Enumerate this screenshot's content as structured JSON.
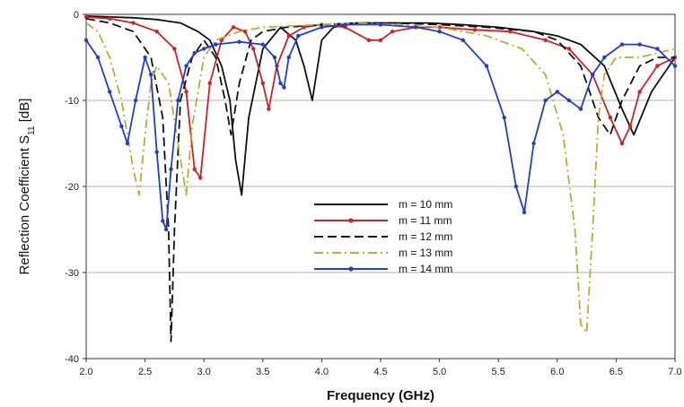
{
  "chart_data": {
    "type": "line",
    "title": "",
    "xlabel": "Frequency (GHz)",
    "ylabel": {
      "main": "Reflection Coefficient S",
      "subscript": "11",
      "unit": " [dB]"
    },
    "xlim": [
      2.0,
      7.0
    ],
    "ylim": [
      -40,
      0
    ],
    "xticks": [
      2.0,
      2.5,
      3.0,
      3.5,
      4.0,
      4.5,
      5.0,
      5.5,
      6.0,
      6.5,
      7.0
    ],
    "yticks": [
      0,
      -10,
      -20,
      -30,
      -40
    ],
    "xtick_labels": [
      "2.0",
      "2.5",
      "3.0",
      "3.5",
      "4.0",
      "4.5",
      "5.0",
      "5.5",
      "6.0",
      "6.5",
      "7.0"
    ],
    "ytick_labels": [
      "0",
      "-10",
      "-20",
      "-30",
      "-40"
    ],
    "grid": "horizontal",
    "legend_position": "center",
    "series": [
      {
        "name": "m = 10 mm",
        "color": "#111111",
        "style": "solid",
        "marker": "none",
        "x": [
          2.0,
          2.2,
          2.4,
          2.6,
          2.8,
          2.95,
          3.05,
          3.15,
          3.22,
          3.27,
          3.32,
          3.38,
          3.5,
          3.65,
          3.78,
          3.85,
          3.92,
          4.0,
          4.1,
          4.3,
          4.6,
          4.9,
          5.2,
          5.5,
          5.8,
          6.0,
          6.2,
          6.4,
          6.55,
          6.65,
          6.8,
          7.0
        ],
        "y": [
          -0.2,
          -0.3,
          -0.4,
          -0.6,
          -1.0,
          -2.0,
          -3.0,
          -6.0,
          -10.0,
          -17.0,
          -21.0,
          -12.0,
          -4.0,
          -1.5,
          -3.0,
          -6.0,
          -10.0,
          -3.0,
          -1.5,
          -1.0,
          -1.0,
          -1.0,
          -1.2,
          -1.5,
          -2.0,
          -2.5,
          -3.5,
          -6.0,
          -11.0,
          -14.0,
          -9.0,
          -5.0
        ]
      },
      {
        "name": "m = 11 mm",
        "color": "#d42020",
        "style": "solid",
        "marker": "circle",
        "x": [
          2.0,
          2.2,
          2.4,
          2.6,
          2.75,
          2.85,
          2.92,
          2.97,
          3.05,
          3.15,
          3.25,
          3.35,
          3.42,
          3.5,
          3.55,
          3.62,
          3.72,
          3.85,
          4.0,
          4.2,
          4.4,
          4.5,
          4.6,
          4.8,
          5.0,
          5.3,
          5.6,
          5.9,
          6.1,
          6.3,
          6.45,
          6.55,
          6.62,
          6.7,
          6.85,
          7.0
        ],
        "y": [
          -0.3,
          -0.5,
          -1.0,
          -2.0,
          -4.0,
          -9.0,
          -18.0,
          -19.0,
          -8.0,
          -3.0,
          -1.5,
          -2.0,
          -4.0,
          -8.0,
          -11.0,
          -6.0,
          -2.5,
          -1.5,
          -1.2,
          -1.5,
          -3.0,
          -3.0,
          -2.0,
          -1.5,
          -1.5,
          -1.8,
          -2.0,
          -3.0,
          -4.0,
          -7.0,
          -12.0,
          -15.0,
          -13.0,
          -9.0,
          -6.0,
          -5.0
        ]
      },
      {
        "name": "m = 12 mm",
        "color": "#111111",
        "style": "dash",
        "marker": "none",
        "x": [
          2.0,
          2.2,
          2.4,
          2.55,
          2.65,
          2.7,
          2.72,
          2.75,
          2.8,
          2.9,
          3.0,
          3.1,
          3.18,
          3.23,
          3.3,
          3.4,
          3.5,
          3.7,
          4.0,
          4.3,
          4.6,
          5.0,
          5.4,
          5.8,
          6.0,
          6.2,
          6.35,
          6.45,
          6.55,
          6.7,
          6.85,
          7.0
        ],
        "y": [
          -0.5,
          -1.0,
          -2.0,
          -5.0,
          -12.0,
          -25.0,
          -38.0,
          -25.0,
          -10.0,
          -5.0,
          -3.0,
          -5.0,
          -10.0,
          -14.0,
          -8.0,
          -3.0,
          -2.0,
          -1.5,
          -1.2,
          -1.0,
          -1.0,
          -1.2,
          -1.5,
          -2.0,
          -3.0,
          -6.0,
          -12.0,
          -14.0,
          -10.0,
          -6.0,
          -5.0,
          -5.0
        ]
      },
      {
        "name": "m = 13 mm",
        "color": "#b8b030",
        "style": "dashdot",
        "marker": "none",
        "x": [
          2.0,
          2.1,
          2.2,
          2.3,
          2.4,
          2.45,
          2.5,
          2.55,
          2.6,
          2.7,
          2.78,
          2.85,
          2.9,
          3.0,
          3.1,
          3.3,
          3.5,
          3.8,
          4.0,
          4.3,
          4.6,
          5.0,
          5.4,
          5.7,
          5.9,
          6.05,
          6.15,
          6.2,
          6.25,
          6.3,
          6.35,
          6.4,
          6.5,
          6.7,
          6.85,
          7.0
        ],
        "y": [
          -1.0,
          -2.0,
          -5.0,
          -10.0,
          -18.0,
          -21.0,
          -14.0,
          -8.0,
          -6.0,
          -8.0,
          -15.0,
          -21.0,
          -13.0,
          -5.0,
          -3.0,
          -2.0,
          -1.5,
          -1.3,
          -1.2,
          -1.0,
          -1.2,
          -1.5,
          -2.5,
          -4.0,
          -7.0,
          -14.0,
          -25.0,
          -36.0,
          -37.0,
          -25.0,
          -12.0,
          -7.0,
          -5.0,
          -5.0,
          -4.5,
          -4.0
        ]
      },
      {
        "name": "m = 14 mm",
        "color": "#1f3fd0",
        "style": "solid",
        "marker": "circle",
        "x": [
          2.0,
          2.1,
          2.2,
          2.3,
          2.35,
          2.42,
          2.5,
          2.55,
          2.6,
          2.65,
          2.68,
          2.72,
          2.78,
          2.85,
          2.92,
          3.0,
          3.1,
          3.3,
          3.5,
          3.6,
          3.65,
          3.68,
          3.72,
          3.8,
          4.0,
          4.2,
          4.5,
          4.8,
          5.0,
          5.2,
          5.4,
          5.55,
          5.65,
          5.72,
          5.8,
          5.9,
          6.0,
          6.1,
          6.2,
          6.3,
          6.4,
          6.55,
          6.7,
          6.85,
          7.0
        ],
        "y": [
          -3.0,
          -5.0,
          -9.0,
          -13.0,
          -15.0,
          -10.0,
          -5.0,
          -7.0,
          -16.0,
          -24.0,
          -25.0,
          -18.0,
          -10.0,
          -6.0,
          -4.5,
          -4.0,
          -3.5,
          -3.2,
          -3.5,
          -5.0,
          -8.0,
          -8.5,
          -5.0,
          -2.5,
          -1.5,
          -1.2,
          -1.2,
          -1.5,
          -2.0,
          -3.0,
          -6.0,
          -12.0,
          -20.0,
          -23.0,
          -15.0,
          -10.0,
          -9.0,
          -10.0,
          -11.0,
          -7.0,
          -5.0,
          -3.5,
          -3.5,
          -4.0,
          -6.0
        ]
      }
    ]
  }
}
